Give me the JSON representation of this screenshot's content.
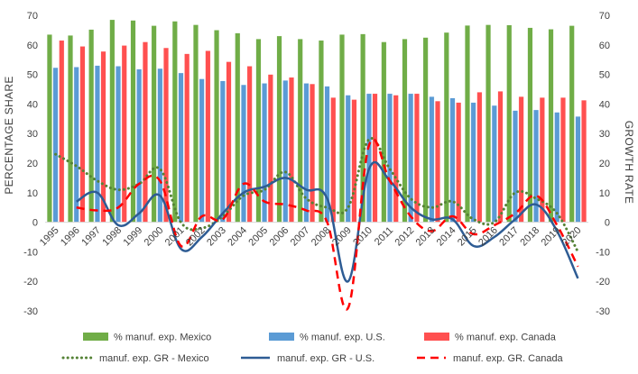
{
  "chart_data": {
    "type": "bar+line",
    "categories": [
      "1995",
      "1996",
      "1997",
      "1998",
      "1999",
      "2000",
      "2001",
      "2002",
      "2003",
      "2004",
      "2005",
      "2006",
      "2007",
      "2008",
      "2009",
      "2010",
      "2011",
      "2012",
      "2013",
      "2014",
      "2015",
      "2016",
      "2017",
      "2018",
      "2019",
      "2020"
    ],
    "left_axis": {
      "label": "PERCENTAGE SHARE",
      "ylim": [
        -30,
        70
      ],
      "ticks": [
        -30,
        -20,
        -10,
        0,
        10,
        20,
        30,
        40,
        50,
        60,
        70
      ]
    },
    "right_axis": {
      "label": "GROWTH RATE",
      "ylim": [
        -30,
        70
      ],
      "ticks": [
        -30,
        -20,
        -10,
        0,
        10,
        20,
        30,
        40,
        50,
        60,
        70
      ]
    },
    "bar_series": [
      {
        "name": "% manuf. exp. Mexico",
        "color": "#70AD47",
        "values": [
          63.5,
          63.2,
          65.2,
          68.5,
          68.3,
          66.5,
          68.0,
          66.8,
          65.0,
          64.0,
          62.0,
          63.0,
          62.0,
          61.5,
          63.5,
          63.7,
          61.0,
          62.0,
          62.5,
          64.2,
          66.6,
          66.8,
          66.7,
          65.8,
          65.3,
          66.5
        ]
      },
      {
        "name": "% manuf. exp. U.S.",
        "color": "#5B9BD5",
        "values": [
          52.3,
          52.5,
          53.0,
          52.8,
          51.8,
          52.0,
          50.5,
          48.5,
          47.8,
          46.5,
          47.0,
          48.0,
          47.0,
          46.0,
          43.0,
          43.5,
          43.5,
          43.5,
          42.5,
          42.0,
          40.5,
          39.5,
          37.8,
          38.0,
          37.2,
          35.8
        ]
      },
      {
        "name": "% manuf. exp. Canada",
        "color": "#FF5050",
        "values": [
          61.5,
          59.5,
          57.8,
          59.8,
          61.0,
          59.0,
          57.0,
          58.0,
          54.3,
          52.8,
          50.0,
          49.0,
          46.8,
          42.2,
          41.5,
          43.5,
          43.0,
          43.5,
          41.0,
          40.5,
          44.0,
          44.3,
          42.5,
          42.2,
          42.2,
          41.3
        ]
      }
    ],
    "line_series": [
      {
        "name": "manuf. exp. GR - Mexico",
        "color": "#548235",
        "style": "dotted",
        "values": [
          23,
          19,
          14,
          11,
          13,
          18,
          0,
          -2,
          2,
          9,
          11,
          17,
          8,
          5,
          5,
          28,
          18,
          8,
          5,
          7,
          1,
          0,
          10,
          8,
          3,
          -10
        ]
      },
      {
        "name": "manuf. exp. GR - U.S.",
        "color": "#2E5C94",
        "style": "solid",
        "values": [
          null,
          7,
          10,
          -1,
          3,
          9,
          -9,
          -5,
          3,
          10,
          12,
          15,
          11,
          8,
          -20,
          18,
          14,
          5,
          1,
          1,
          -8,
          -5,
          1,
          6,
          -3,
          -19
        ]
      },
      {
        "name": "manuf. exp. GR. Canada",
        "color": "#FF0000",
        "style": "dashed",
        "values": [
          null,
          5,
          4,
          5,
          13,
          14,
          -8,
          2,
          1,
          13,
          7,
          6,
          4,
          0,
          -29,
          26,
          14,
          2,
          -3,
          2,
          -4,
          -1,
          3,
          9,
          -1,
          -15
        ]
      }
    ],
    "legend": {
      "placement": "bottom"
    },
    "grid": false
  }
}
